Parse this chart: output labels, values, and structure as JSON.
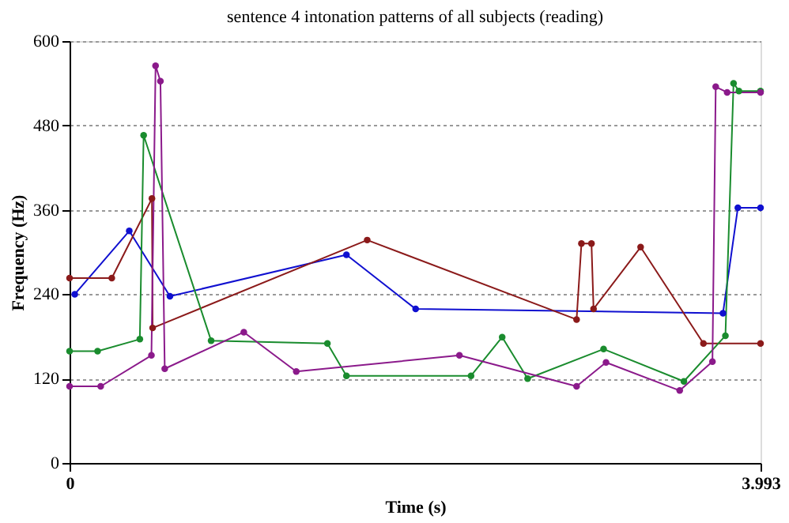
{
  "chart_data": {
    "type": "line",
    "title": "sentence 4 intonation patterns of all subjects (reading)",
    "xlabel": "Time (s)",
    "ylabel": "Frequency (Hz)",
    "xlim": [
      0,
      3.993
    ],
    "xticks": [
      0,
      3.993
    ],
    "ylim": [
      0,
      600
    ],
    "yticks": [
      0,
      120,
      240,
      360,
      480,
      600
    ],
    "grid": "y",
    "marker": "circle",
    "line_style": "solid",
    "legend": false,
    "series": [
      {
        "color": "#1010d0",
        "x": [
          0.03,
          0.345,
          0.58,
          1.6,
          2.0,
          3.776,
          3.862,
          3.993
        ],
        "values": [
          240,
          330,
          237,
          296,
          219,
          213,
          363,
          363
        ]
      },
      {
        "color": "#8b1a1a",
        "x": [
          0,
          0.244,
          0.476,
          0.48,
          1.72,
          2.93,
          2.958,
          3.016,
          3.028,
          3.3,
          3.663,
          3.993
        ],
        "values": [
          263,
          263,
          376,
          192,
          317,
          204,
          312,
          312,
          219,
          307,
          170,
          170
        ]
      },
      {
        "color": "#1a8c2e",
        "x": [
          0,
          0.162,
          0.406,
          0.428,
          0.818,
          1.49,
          1.6,
          2.32,
          2.5,
          2.647,
          3.086,
          3.55,
          3.79,
          3.837,
          3.868,
          3.993
        ],
        "values": [
          159,
          159,
          176,
          466,
          174,
          170,
          124,
          124,
          179,
          120,
          162,
          116,
          181,
          540,
          529,
          529
        ]
      },
      {
        "color": "#8b1a8b",
        "x": [
          0,
          0.18,
          0.473,
          0.497,
          0.525,
          0.55,
          1.007,
          1.31,
          2.253,
          2.93,
          3.1,
          3.526,
          3.715,
          3.734,
          3.8,
          3.993
        ],
        "values": [
          109,
          109,
          153,
          565,
          543,
          134,
          186,
          130,
          153,
          109,
          143,
          103,
          144,
          535,
          527,
          527
        ]
      }
    ]
  }
}
